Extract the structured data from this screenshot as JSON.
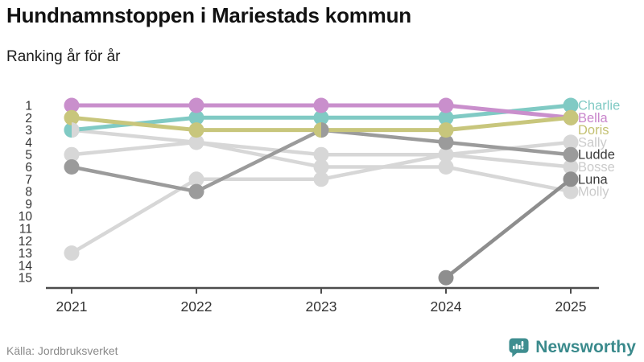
{
  "header": {
    "title": "Hundnamnstoppen i Mariestads kommun",
    "subtitle": "Ranking år för år"
  },
  "footer": {
    "source": "Källa: Jordbruksverket",
    "brand": "Newsworthy",
    "brand_color": "#3a8a8c",
    "brand_icon": "newsworthy-bubble-chart-icon"
  },
  "chart_data": {
    "type": "line",
    "variant": "bump-ranking",
    "x": [
      2021,
      2022,
      2023,
      2024,
      2025
    ],
    "yticks": [
      1,
      2,
      3,
      4,
      5,
      6,
      7,
      8,
      9,
      10,
      11,
      12,
      13,
      14,
      15
    ],
    "ylim": [
      1,
      15
    ],
    "y_inverted": true,
    "grid": false,
    "legend_position": "right",
    "xlabel": "",
    "ylabel": "",
    "axis_color": "#4d4d4d",
    "tick_label_color": "#333333",
    "series": [
      {
        "name": "Charlie",
        "color": "#80cac4",
        "label_color": "#80cac4",
        "layer": 2,
        "values": [
          3,
          2,
          2,
          2,
          1
        ]
      },
      {
        "name": "Bella",
        "color": "#c98fcc",
        "label_color": "#c986cc",
        "layer": 2,
        "values": [
          1,
          1,
          1,
          1,
          2
        ]
      },
      {
        "name": "Doris",
        "color": "#c8c67c",
        "label_color": "#c4c172",
        "layer": 2,
        "values": [
          2,
          3,
          3,
          3,
          2
        ]
      },
      {
        "name": "Sally",
        "color": "#d7d7d7",
        "label_color": "#cbcbcb",
        "layer": 0,
        "values": [
          3,
          4,
          5,
          5,
          4
        ]
      },
      {
        "name": "Ludde",
        "color": "#9b9b9b",
        "label_color": "#3c3c3c",
        "layer": 1,
        "values": [
          6,
          8,
          3,
          4,
          5
        ]
      },
      {
        "name": "Bosse",
        "color": "#d7d7d7",
        "label_color": "#cbcbcb",
        "layer": 0,
        "values": [
          13,
          7,
          7,
          5,
          6
        ]
      },
      {
        "name": "Luna",
        "color": "#8e8e8e",
        "label_color": "#3c3c3c",
        "layer": 1,
        "values": [
          null,
          null,
          null,
          15,
          7
        ]
      },
      {
        "name": "Molly",
        "color": "#d7d7d7",
        "label_color": "#cbcbcb",
        "layer": 0,
        "values": [
          5,
          4,
          6,
          6,
          8
        ]
      }
    ],
    "ties_note": "2021: Charlie+Sally share rank 3; 2023: Doris+Ludde share rank 3; 2024: Sally+Bosse share rank 5; 2025: Bella+Doris share rank 2; 2022: Sally+Molly share rank 4"
  }
}
